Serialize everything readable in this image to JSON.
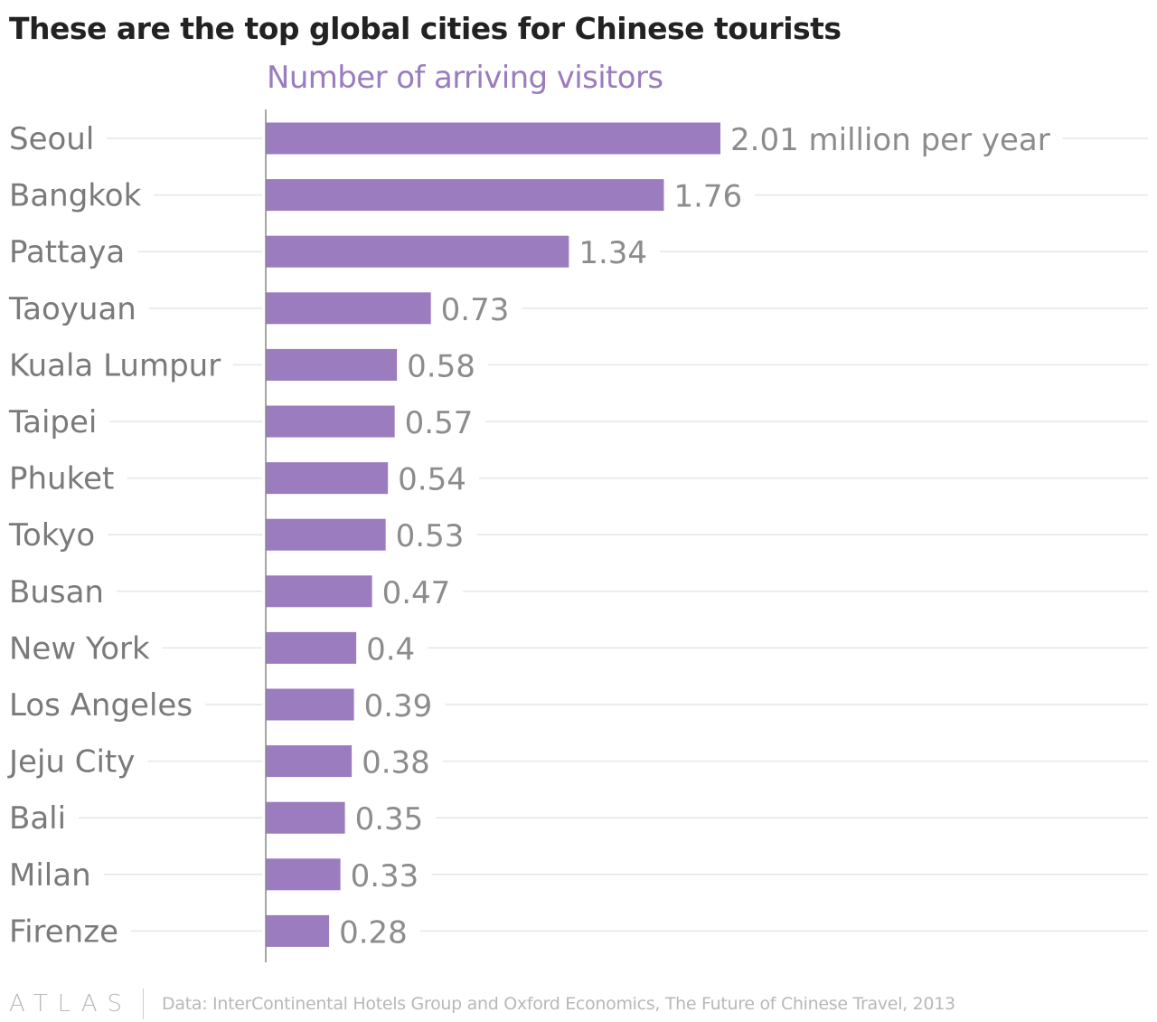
{
  "title": "These are the top global cities for Chinese tourists",
  "subtitle": "Number of arriving visitors",
  "footer": {
    "logo": "ATLAS",
    "source": "Data: InterContinental Hotels Group and Oxford Economics, The Future of Chinese Travel, 2013"
  },
  "colors": {
    "bar": "#9a7cbf",
    "gridline": "#e6e6e6",
    "axis": "#888888"
  },
  "chart_data": {
    "type": "bar",
    "orientation": "horizontal",
    "categories": [
      "Seoul",
      "Bangkok",
      "Pattaya",
      "Taoyuan",
      "Kuala Lumpur",
      "Taipei",
      "Phuket",
      "Tokyo",
      "Busan",
      "New York",
      "Los Angeles",
      "Jeju City",
      "Bali",
      "Milan",
      "Firenze"
    ],
    "values": [
      2.01,
      1.76,
      1.34,
      0.73,
      0.58,
      0.57,
      0.54,
      0.53,
      0.47,
      0.4,
      0.39,
      0.38,
      0.35,
      0.33,
      0.28
    ],
    "value_labels": [
      "2.01 million per year",
      "1.76",
      "1.34",
      "0.73",
      "0.58",
      "0.57",
      "0.54",
      "0.53",
      "0.47",
      "0.4",
      "0.39",
      "0.38",
      "0.35",
      "0.33",
      "0.28"
    ],
    "unit": "million per year",
    "title": "These are the top global cities for Chinese tourists",
    "xlabel": "Number of arriving visitors",
    "ylabel": "",
    "xlim": [
      0,
      3.9
    ],
    "grid": true,
    "legend": "none"
  }
}
